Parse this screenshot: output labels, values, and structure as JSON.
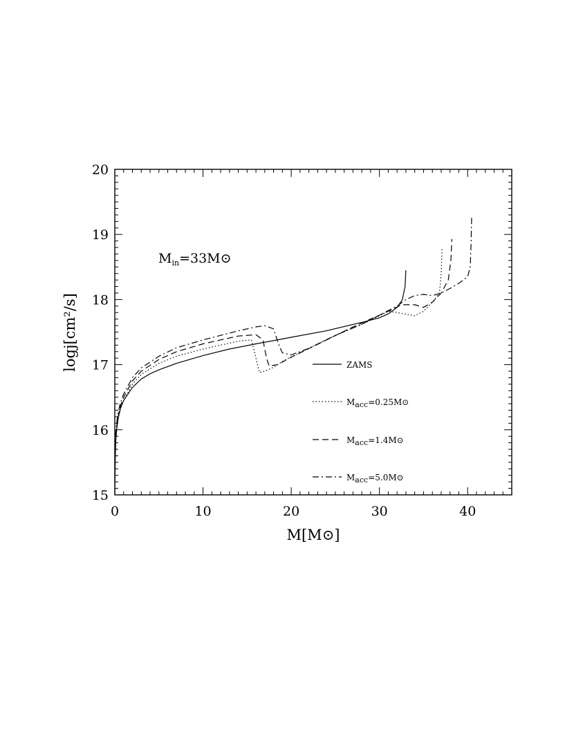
{
  "chart_data": {
    "type": "line",
    "xlabel": {
      "main": "M[M",
      "sun": "⊙",
      "close": "]"
    },
    "ylabel": "logj[cm²/s]",
    "xlim": [
      0,
      45
    ],
    "ylim": [
      15,
      20
    ],
    "x_ticks": [
      0,
      10,
      20,
      30,
      40
    ],
    "y_ticks": [
      15,
      16,
      17,
      18,
      19,
      20
    ],
    "annotation": {
      "main": "M",
      "sub": "in",
      "rest": "=33M",
      "sun": "⊙"
    },
    "legend_position": "right-inside",
    "series": [
      {
        "name": "ZAMS",
        "label": {
          "main": "ZAMS",
          "sub": "",
          "rest": "",
          "sun": ""
        },
        "dash": "solid",
        "points": [
          [
            0,
            15.0
          ],
          [
            0.05,
            15.5
          ],
          [
            0.1,
            15.8
          ],
          [
            0.2,
            16.0
          ],
          [
            0.4,
            16.2
          ],
          [
            0.7,
            16.35
          ],
          [
            1,
            16.45
          ],
          [
            2,
            16.65
          ],
          [
            3,
            16.78
          ],
          [
            4,
            16.86
          ],
          [
            5,
            16.92
          ],
          [
            7,
            17.02
          ],
          [
            10,
            17.14
          ],
          [
            13,
            17.24
          ],
          [
            16,
            17.32
          ],
          [
            20,
            17.42
          ],
          [
            24,
            17.52
          ],
          [
            28,
            17.65
          ],
          [
            30,
            17.72
          ],
          [
            31,
            17.78
          ],
          [
            32,
            17.88
          ],
          [
            32.6,
            18.0
          ],
          [
            32.9,
            18.2
          ],
          [
            33.0,
            18.45
          ]
        ]
      },
      {
        "name": "Macc=0.25M⊙",
        "label": {
          "main": "M",
          "sub": "acc",
          "rest": "=0.25M",
          "sun": "⊙"
        },
        "dash": "dotted",
        "points": [
          [
            0,
            15.4
          ],
          [
            0.1,
            15.85
          ],
          [
            0.3,
            16.1
          ],
          [
            0.6,
            16.3
          ],
          [
            1,
            16.45
          ],
          [
            2,
            16.7
          ],
          [
            3,
            16.85
          ],
          [
            5,
            17.02
          ],
          [
            7,
            17.13
          ],
          [
            10,
            17.24
          ],
          [
            12,
            17.3
          ],
          [
            14,
            17.36
          ],
          [
            15.5,
            17.38
          ],
          [
            16.0,
            17.1
          ],
          [
            16.4,
            16.88
          ],
          [
            17,
            16.9
          ],
          [
            18,
            16.96
          ],
          [
            19,
            17.05
          ],
          [
            20,
            17.12
          ],
          [
            22,
            17.25
          ],
          [
            25,
            17.45
          ],
          [
            28,
            17.62
          ],
          [
            30,
            17.75
          ],
          [
            31,
            17.82
          ],
          [
            32,
            17.8
          ],
          [
            34,
            17.75
          ],
          [
            35,
            17.82
          ],
          [
            36,
            17.96
          ],
          [
            36.8,
            18.1
          ],
          [
            37.0,
            18.4
          ],
          [
            37.1,
            18.78
          ]
        ]
      },
      {
        "name": "Macc=1.4M⊙",
        "label": {
          "main": "M",
          "sub": "acc",
          "rest": "=1.4M",
          "sun": "⊙"
        },
        "dash": "dashed",
        "points": [
          [
            0,
            15.45
          ],
          [
            0.1,
            15.9
          ],
          [
            0.3,
            16.15
          ],
          [
            0.6,
            16.35
          ],
          [
            1,
            16.5
          ],
          [
            2,
            16.75
          ],
          [
            3,
            16.9
          ],
          [
            5,
            17.08
          ],
          [
            7,
            17.2
          ],
          [
            10,
            17.32
          ],
          [
            12,
            17.38
          ],
          [
            14,
            17.44
          ],
          [
            16,
            17.46
          ],
          [
            16.8,
            17.38
          ],
          [
            17.2,
            17.1
          ],
          [
            17.5,
            16.98
          ],
          [
            18.5,
            17.0
          ],
          [
            19.5,
            17.08
          ],
          [
            21,
            17.18
          ],
          [
            24,
            17.38
          ],
          [
            27,
            17.58
          ],
          [
            30,
            17.76
          ],
          [
            31.5,
            17.85
          ],
          [
            32.5,
            17.92
          ],
          [
            34,
            17.92
          ],
          [
            35,
            17.88
          ],
          [
            36,
            17.96
          ],
          [
            37,
            18.1
          ],
          [
            37.8,
            18.3
          ],
          [
            38.1,
            18.6
          ],
          [
            38.2,
            18.93
          ]
        ]
      },
      {
        "name": "Macc=5.0M⊙",
        "label": {
          "main": "M",
          "sub": "acc",
          "rest": "=5.0M",
          "sun": "⊙"
        },
        "dash": "dashdot",
        "points": [
          [
            0,
            15.5
          ],
          [
            0.1,
            15.95
          ],
          [
            0.3,
            16.2
          ],
          [
            0.6,
            16.4
          ],
          [
            1,
            16.55
          ],
          [
            2,
            16.8
          ],
          [
            3,
            16.95
          ],
          [
            5,
            17.13
          ],
          [
            7,
            17.26
          ],
          [
            10,
            17.38
          ],
          [
            12,
            17.45
          ],
          [
            14,
            17.52
          ],
          [
            16,
            17.58
          ],
          [
            17,
            17.6
          ],
          [
            18,
            17.55
          ],
          [
            18.6,
            17.3
          ],
          [
            19.0,
            17.18
          ],
          [
            20,
            17.15
          ],
          [
            22,
            17.25
          ],
          [
            25,
            17.45
          ],
          [
            28,
            17.62
          ],
          [
            30,
            17.76
          ],
          [
            32,
            17.9
          ],
          [
            33,
            18.0
          ],
          [
            34,
            18.06
          ],
          [
            35,
            18.08
          ],
          [
            36,
            18.06
          ],
          [
            37,
            18.1
          ],
          [
            38,
            18.17
          ],
          [
            39,
            18.25
          ],
          [
            40,
            18.35
          ],
          [
            40.3,
            18.5
          ],
          [
            40.4,
            18.9
          ],
          [
            40.45,
            19.28
          ]
        ]
      }
    ]
  }
}
